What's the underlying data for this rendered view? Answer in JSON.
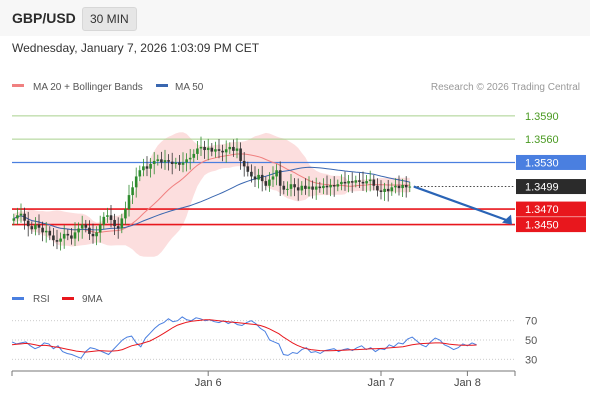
{
  "header": {
    "symbol": "GBP/USD",
    "timeframe": "30 MIN",
    "datetime": "Wednesday, January 7, 2026 1:03:09 PM CET"
  },
  "credit": "Research © 2026 Trading Central",
  "colors": {
    "ma20": "#f08080",
    "bands_fill": "#fbd3d3",
    "ma50": "#3a67b0",
    "resistance": "#4a7fe0",
    "support": "#e8171d",
    "target_green": "#a9d08e",
    "green_text": "#4a9a22",
    "candle_up": "#2e8b2e",
    "candle_down": "#333333",
    "arrow": "#2a64b6",
    "rsi": "#4a7fe0",
    "rsi_ma": "#e8171d"
  },
  "icons": {
    "forecast_arrow": "arrow-down-right-icon"
  },
  "chart_data": [
    {
      "type": "candlestick",
      "title": "GBP/USD 30 MIN",
      "legend": [
        {
          "name": "MA 20 + Bollinger Bands",
          "color": "#f08080"
        },
        {
          "name": "MA 50",
          "color": "#3a67b0"
        }
      ],
      "legend_position": "top-left",
      "ylim": [
        1.3407,
        1.3613
      ],
      "last_price": 1.3499,
      "levels": [
        {
          "value": 1.359,
          "label": "1.3590",
          "kind": "target"
        },
        {
          "value": 1.356,
          "label": "1.3560",
          "kind": "target"
        },
        {
          "value": 1.353,
          "label": "1.3530",
          "kind": "resistance"
        },
        {
          "value": 1.347,
          "label": "1.3470",
          "kind": "support"
        },
        {
          "value": 1.345,
          "label": "1.3450",
          "kind": "support"
        }
      ],
      "last_price_label": "1.3499",
      "x_ticks": [
        {
          "label": "Jan 6",
          "index": 54
        },
        {
          "label": "Jan 7",
          "index": 102
        },
        {
          "label": "Jan 8",
          "index": 126
        }
      ],
      "forecast": {
        "from": 1.3499,
        "to": 1.345
      },
      "close": [
        1.3458,
        1.3462,
        1.3464,
        1.3455,
        1.3448,
        1.3444,
        1.345,
        1.3446,
        1.344,
        1.3442,
        1.3436,
        1.343,
        1.3428,
        1.3432,
        1.3438,
        1.3436,
        1.3432,
        1.344,
        1.3445,
        1.345,
        1.3446,
        1.3438,
        1.3435,
        1.344,
        1.345,
        1.346,
        1.3462,
        1.3456,
        1.3448,
        1.3445,
        1.3458,
        1.347,
        1.3488,
        1.3498,
        1.3512,
        1.352,
        1.3525,
        1.3522,
        1.3528,
        1.3532,
        1.3534,
        1.353,
        1.3533,
        1.3531,
        1.3528,
        1.353,
        1.3527,
        1.353,
        1.3534,
        1.3536,
        1.3541,
        1.3548,
        1.355,
        1.3546,
        1.3549,
        1.3544,
        1.3547,
        1.3545,
        1.3543,
        1.3547,
        1.355,
        1.3545,
        1.3548,
        1.3532,
        1.3525,
        1.3518,
        1.3512,
        1.3508,
        1.3514,
        1.3506,
        1.35,
        1.3508,
        1.3512,
        1.352,
        1.35,
        1.3495,
        1.3496,
        1.3502,
        1.3498,
        1.3494,
        1.35,
        1.3496,
        1.3499,
        1.3495,
        1.3499,
        1.3497,
        1.35,
        1.3498,
        1.3501,
        1.3499,
        1.3502,
        1.3505,
        1.3503,
        1.3506,
        1.3504,
        1.3507,
        1.3505,
        1.3503,
        1.3506,
        1.3508,
        1.35,
        1.3494,
        1.3492,
        1.3496,
        1.3493,
        1.3498,
        1.35,
        1.3497,
        1.3501,
        1.3498,
        1.3499
      ]
    },
    {
      "type": "line",
      "title": "RSI",
      "legend": [
        {
          "name": "RSI",
          "color": "#4a7fe0"
        },
        {
          "name": "9MA",
          "color": "#e8171d"
        }
      ],
      "ylim": [
        22,
        78
      ],
      "y_ticks": [
        70,
        50,
        30
      ],
      "series": [
        {
          "name": "RSI",
          "values": [
            48,
            46,
            47,
            48,
            44,
            41,
            43,
            47,
            46,
            41,
            44,
            38,
            36,
            35,
            33,
            31,
            38,
            42,
            41,
            39,
            37,
            35,
            40,
            45,
            50,
            53,
            54,
            47,
            43,
            52,
            57,
            62,
            66,
            68,
            72,
            69,
            70,
            74,
            71,
            70,
            73,
            72,
            70,
            71,
            69,
            68,
            70,
            67,
            69,
            66,
            65,
            68,
            70,
            67,
            62,
            59,
            50,
            48,
            46,
            35,
            34,
            37,
            36,
            40,
            42,
            37,
            38,
            36,
            39,
            40,
            41,
            38,
            40,
            41,
            39,
            42,
            44,
            40,
            42,
            38,
            41,
            40,
            45,
            43,
            47,
            46,
            51,
            53,
            49,
            45,
            43,
            48,
            52,
            50,
            45,
            43,
            40,
            42,
            46,
            44,
            47,
            45
          ]
        },
        {
          "name": "9MA",
          "values": [
            45,
            45.5,
            46,
            46.5,
            46,
            45,
            44,
            44.5,
            44,
            43,
            42.5,
            41.5,
            40.5,
            39.5,
            38.5,
            38,
            37.5,
            38,
            38.5,
            39,
            38.7,
            38.5,
            38.6,
            39,
            40,
            42,
            44,
            45,
            46,
            47.5,
            49,
            51.5,
            54,
            57,
            60,
            63,
            65.5,
            67,
            68.5,
            69.5,
            70,
            70.5,
            71,
            71,
            70.5,
            70,
            69.5,
            69,
            68.5,
            68,
            67.5,
            67,
            66.5,
            66,
            65,
            63.5,
            61.5,
            59,
            56.5,
            53,
            50,
            47,
            44.5,
            42.5,
            41,
            40,
            39.5,
            39,
            38.8,
            38.8,
            39,
            39.2,
            39.4,
            39.6,
            39.8,
            40,
            40.3,
            40.6,
            41,
            41,
            41.2,
            41.4,
            41.8,
            42.2,
            42.6,
            43,
            44,
            45,
            45.8,
            46.3,
            46.5,
            46.8,
            47,
            47,
            46.5,
            45.8,
            45.2,
            44.8,
            44.6,
            44.5,
            44.6,
            44.8
          ]
        }
      ],
      "x_ticks": [
        {
          "label": "Jan 6",
          "index": 54
        },
        {
          "label": "Jan 7",
          "index": 102
        },
        {
          "label": "Jan 8",
          "index": 126
        }
      ]
    }
  ]
}
